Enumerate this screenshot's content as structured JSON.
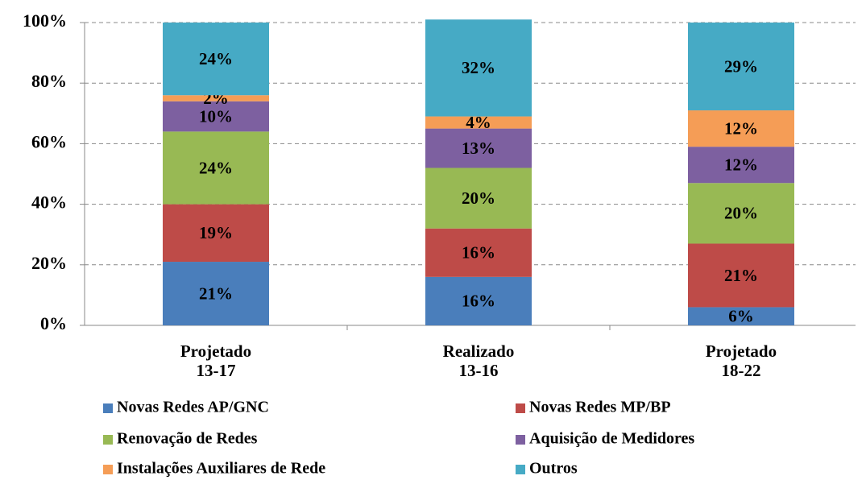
{
  "chart_data": {
    "type": "stacked_bar",
    "categories": [
      [
        "Projetado",
        "13-17"
      ],
      [
        "Realizado",
        "13-16"
      ],
      [
        "Projetado",
        "18-22"
      ]
    ],
    "series": [
      {
        "name": "Novas Redes AP/GNC",
        "color": "#4a7ebb",
        "values": [
          21,
          16,
          6
        ],
        "value_labels": [
          "21%",
          "16%",
          "6%"
        ]
      },
      {
        "name": "Novas Redes MP/BP",
        "color": "#be4b48",
        "values": [
          19,
          16,
          21
        ],
        "value_labels": [
          "19%",
          "16%",
          "21%"
        ]
      },
      {
        "name": "Renovação de Redes",
        "color": "#98b954",
        "values": [
          24,
          20,
          20
        ],
        "value_labels": [
          "24%",
          "20%",
          "20%"
        ]
      },
      {
        "name": "Aquisição de Medidores",
        "color": "#7d60a0",
        "values": [
          10,
          13,
          12
        ],
        "value_labels": [
          "10%",
          "13%",
          "12%"
        ]
      },
      {
        "name": "Instalações Auxiliares de Rede",
        "color": "#f59d56",
        "values": [
          2,
          4,
          12
        ],
        "value_labels": [
          "2%",
          "4%",
          "12%"
        ]
      },
      {
        "name": "Outros",
        "color": "#46aac5",
        "values": [
          24,
          32,
          29
        ],
        "value_labels": [
          "24%",
          "32%",
          "29%"
        ]
      }
    ],
    "ylim": [
      0,
      100
    ],
    "yticks": [
      {
        "value": 0,
        "label": "0%"
      },
      {
        "value": 20,
        "label": "20%"
      },
      {
        "value": 40,
        "label": "40%"
      },
      {
        "value": 60,
        "label": "60%"
      },
      {
        "value": 80,
        "label": "80%"
      },
      {
        "value": 100,
        "label": "100%"
      }
    ],
    "grid": true,
    "legend": "bottom"
  }
}
